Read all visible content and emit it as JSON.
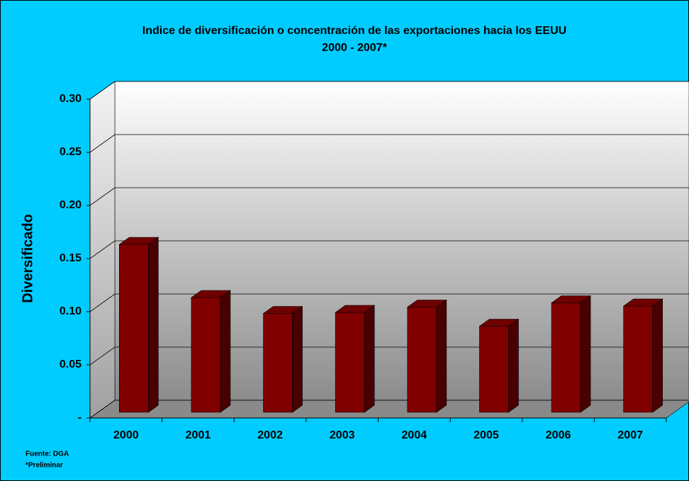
{
  "chart_data": {
    "type": "bar3d",
    "title": "Indice de diversificación o concentración de las exportaciones hacia los EEUU",
    "subtitle": "2000 - 2007*",
    "y_label": "Diversificado",
    "categories": [
      "2000",
      "2001",
      "2002",
      "2003",
      "2004",
      "2005",
      "2006",
      "2007"
    ],
    "values": [
      0.158,
      0.108,
      0.093,
      0.094,
      0.099,
      0.081,
      0.103,
      0.1
    ],
    "color": "#800000",
    "ylim": [
      0,
      0.3
    ],
    "yticks": [
      {
        "value": 0,
        "label": "-"
      },
      0.05,
      {
        "value": 0.1,
        "label": "0.10"
      },
      0.15,
      {
        "value": 0.2,
        "label": "0.20"
      },
      0.25,
      {
        "value": 0.3,
        "label": "0.30"
      }
    ],
    "grid": true,
    "annotations": [
      "Fuente: DGA",
      "*Preliminar"
    ]
  }
}
